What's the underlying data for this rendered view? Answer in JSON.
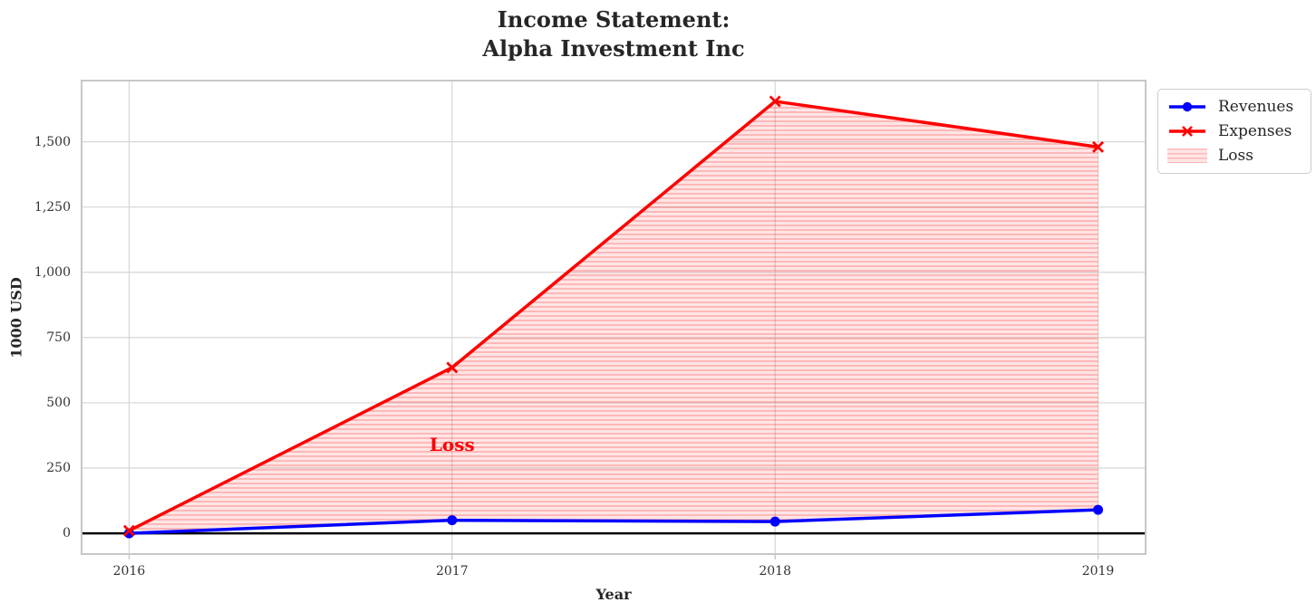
{
  "chart_data": {
    "type": "line",
    "title": "Income Statement:\nAlpha Investment Inc",
    "title_line1": "Income Statement:",
    "title_line2": "Alpha Investment Inc",
    "xlabel": "Year",
    "ylabel": "1000 USD",
    "x": [
      2016,
      2017,
      2018,
      2019
    ],
    "xtick_labels": [
      "2016",
      "2017",
      "2018",
      "2019"
    ],
    "yticks": [
      0,
      250,
      500,
      750,
      1000,
      1250,
      1500
    ],
    "ytick_labels": [
      "0",
      "250",
      "500",
      "750",
      "1,000",
      "1,250",
      "1,500"
    ],
    "xlim": [
      2015.85,
      2019.15
    ],
    "ylim": [
      -83,
      1738
    ],
    "grid": true,
    "zero_line": {
      "y": 0,
      "color": "#000000"
    },
    "series": [
      {
        "name": "Revenues",
        "color": "#0000ff",
        "marker": "circle",
        "values": [
          0,
          50,
          45,
          90
        ]
      },
      {
        "name": "Expenses",
        "color": "#ff0000",
        "marker": "x",
        "values": [
          10,
          635,
          1655,
          1480
        ]
      }
    ],
    "loss_area": {
      "label": "Loss",
      "between": [
        "Revenues",
        "Expenses"
      ],
      "fill_color": "#ff0000",
      "fill_alpha": 0.1,
      "hatch": "horizontal",
      "hatch_alpha": 0.28
    },
    "annotation": {
      "text": "Loss",
      "x": 2017,
      "y": 340,
      "color": "#ff0000"
    },
    "legend": {
      "position": "outside upper right",
      "entries": [
        {
          "label": "Revenues"
        },
        {
          "label": "Expenses"
        },
        {
          "label": "Loss"
        }
      ]
    },
    "colors": {
      "revenues": "#0000ff",
      "expenses": "#ff0000",
      "grid": "#d6d6d6",
      "spine": "#c7c7c7",
      "text": "#262626",
      "tick_text": "#333333"
    }
  }
}
